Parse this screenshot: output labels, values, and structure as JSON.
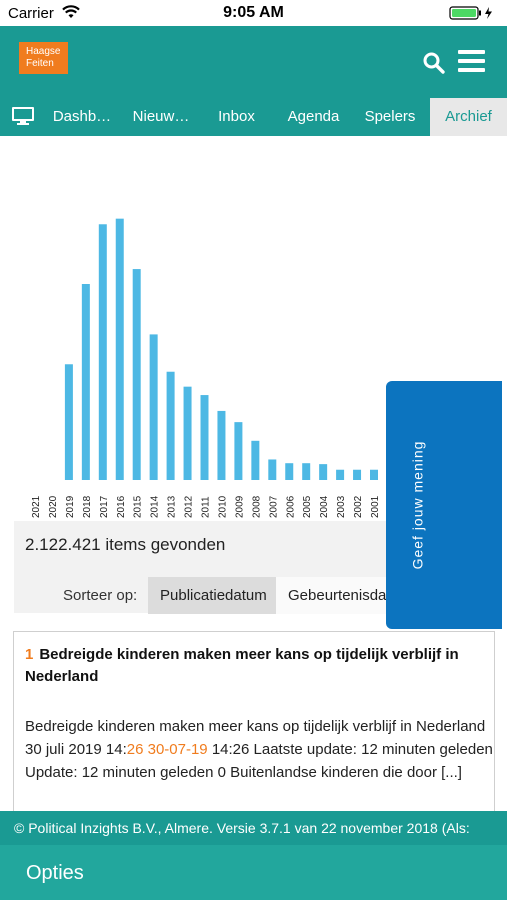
{
  "status_bar": {
    "carrier": "Carrier",
    "time": "9:05 AM"
  },
  "header": {
    "logo_line1": "Haagse",
    "logo_line2": "Feiten",
    "brand_color": "#1a9a93",
    "accent_color": "#f07c1e"
  },
  "tabs": [
    {
      "label": "Dashb…",
      "active": false
    },
    {
      "label": "Nieuw…",
      "active": false
    },
    {
      "label": "Inbox",
      "active": false
    },
    {
      "label": "Agenda",
      "active": false
    },
    {
      "label": "Spelers",
      "active": false
    },
    {
      "label": "Archief",
      "active": true
    }
  ],
  "chart_data": {
    "type": "bar",
    "categories": [
      "2021",
      "2020",
      "2019",
      "2018",
      "2017",
      "2016",
      "2015",
      "2014",
      "2013",
      "2012",
      "2011",
      "2010",
      "2009",
      "2008",
      "2007",
      "2006",
      "2005",
      "2004",
      "2003",
      "2002",
      "2001"
    ],
    "values": [
      0,
      0,
      124,
      210,
      274,
      280,
      226,
      156,
      116,
      100,
      91,
      74,
      62,
      42,
      22,
      18,
      18,
      17,
      11,
      11,
      11
    ],
    "title": "",
    "xlabel": "",
    "ylabel": "",
    "ylim": [
      0,
      300
    ],
    "bar_color": "#4db8e4",
    "grid": false
  },
  "results": {
    "count_text": "2.122.421 items gevonden",
    "sort_label": "Sorteer op:",
    "sort_options": [
      {
        "label": "Publicatiedatum",
        "active": true
      },
      {
        "label": "Gebeurtenisdatum",
        "active": false
      }
    ]
  },
  "feedback": {
    "label": "Geef jouw mening",
    "color": "#0c74bf"
  },
  "article": {
    "number": "1",
    "title": "Bedreigde kinderen maken meer kans op tijdelijk verblijf in Nederland",
    "body_text": "Bedreigde kinderen maken meer kans op tijdelijk verblijf in Nederland",
    "date_prefix": "30 juli 2019 14:",
    "date_highlight": "26 30-07-19",
    "date_suffix": " 14:26 Laatste update: 12 minuten geleden",
    "body_line3": "Update: 12 minuten geleden 0 Buitenlandse kinderen die door [...]"
  },
  "footer": {
    "copyright": "© Political Inzights B.V., Almere. Versie 3.7.1 van 22 november 2018 (Als:"
  },
  "options": {
    "label": "Opties"
  }
}
